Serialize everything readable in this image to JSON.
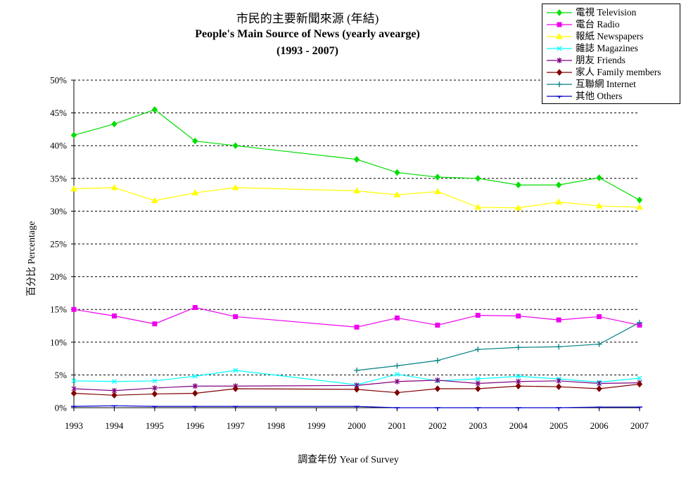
{
  "chart_data": {
    "type": "line",
    "title": "市民的主要新聞來源 (年結)",
    "subtitle": "People's Main Source of News (yearly avearge)",
    "subtitle2": "(1993 - 2007)",
    "xlabel": "調查年份 Year of Survey",
    "ylabel": "百分比 Percentage",
    "categories": [
      "1993",
      "1994",
      "1995",
      "1996",
      "1997",
      "1998",
      "1999",
      "2000",
      "2001",
      "2002",
      "2003",
      "2004",
      "2005",
      "2006",
      "2007"
    ],
    "ylim": [
      0,
      50
    ],
    "yticks": [
      "0%",
      "5%",
      "10%",
      "15%",
      "20%",
      "25%",
      "30%",
      "35%",
      "40%",
      "45%",
      "50%"
    ],
    "grid": "horizontal dashed",
    "legend_position": "top-right",
    "series": [
      {
        "name": "電視 Television",
        "color": "#00dd00",
        "marker": "diamond",
        "values": [
          41.6,
          43.3,
          45.5,
          40.7,
          40.0,
          null,
          null,
          37.9,
          35.9,
          35.2,
          35.0,
          34.0,
          34.0,
          35.1,
          31.7
        ]
      },
      {
        "name": "電台 Radio",
        "color": "#ee00ee",
        "marker": "square",
        "values": [
          15.0,
          14.0,
          12.8,
          15.3,
          13.9,
          null,
          null,
          12.3,
          13.7,
          12.6,
          14.1,
          14.0,
          13.4,
          13.9,
          12.6
        ]
      },
      {
        "name": "報紙 Newspapers",
        "color": "#ffff00",
        "marker": "triangle",
        "values": [
          33.4,
          33.6,
          31.6,
          32.8,
          33.6,
          null,
          null,
          33.1,
          32.5,
          33.0,
          30.6,
          30.5,
          31.4,
          30.8,
          30.6
        ]
      },
      {
        "name": "雜誌 Magazines",
        "color": "#00ffff",
        "marker": "x",
        "values": [
          4.1,
          4.0,
          4.1,
          4.8,
          5.7,
          null,
          null,
          3.5,
          5.1,
          4.1,
          4.4,
          4.8,
          4.4,
          3.9,
          4.5
        ]
      },
      {
        "name": "朋友 Friends",
        "color": "#800080",
        "marker": "star",
        "values": [
          2.9,
          2.6,
          3.0,
          3.3,
          3.3,
          null,
          null,
          3.4,
          4.0,
          4.2,
          3.7,
          4.0,
          4.1,
          3.7,
          3.8
        ]
      },
      {
        "name": "家人 Family members",
        "color": "#800000",
        "marker": "diamond",
        "values": [
          2.2,
          1.9,
          2.1,
          2.2,
          2.9,
          null,
          null,
          2.8,
          2.3,
          2.9,
          2.9,
          3.3,
          3.2,
          2.9,
          3.6
        ]
      },
      {
        "name": "互聯網 Internet",
        "color": "#008080",
        "marker": "plus",
        "values": [
          null,
          null,
          null,
          null,
          null,
          null,
          null,
          5.7,
          6.4,
          7.2,
          8.9,
          9.2,
          9.3,
          9.7,
          13.0
        ]
      },
      {
        "name": "其他 Others",
        "color": "#0000cc",
        "marker": "dash",
        "values": [
          0.2,
          0.3,
          0.2,
          0.2,
          0.2,
          null,
          null,
          0.2,
          0.0,
          0.0,
          0.0,
          0.0,
          0.0,
          0.1,
          0.1
        ]
      }
    ]
  }
}
